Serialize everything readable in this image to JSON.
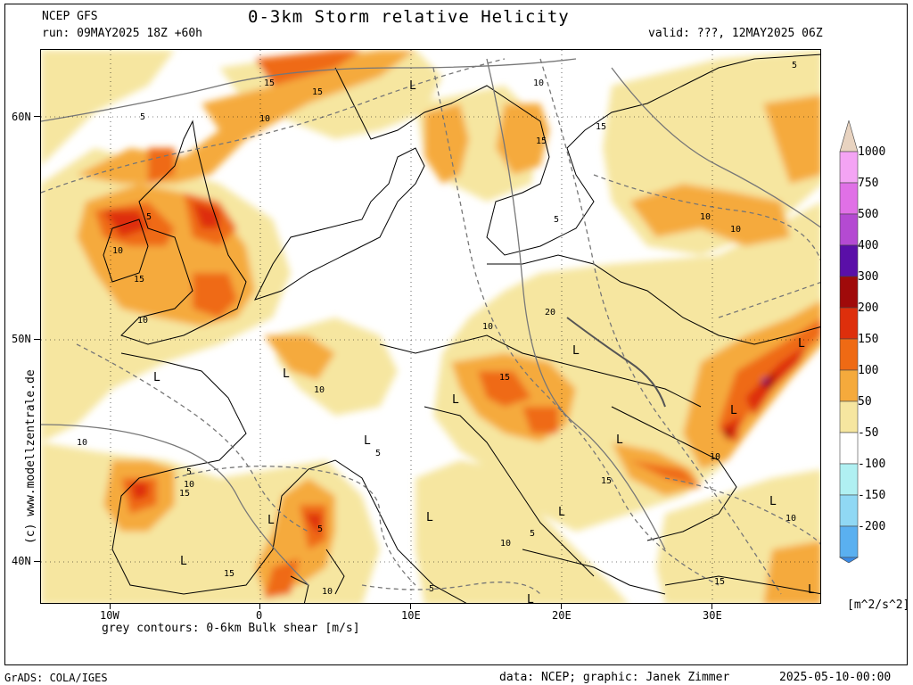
{
  "header": {
    "model": "NCEP GFS",
    "run": "run: 09MAY2025 18Z +60h",
    "title": "0-3km Storm relative Helicity",
    "valid": "valid: ???, 12MAY2025 06Z"
  },
  "axes": {
    "lat_labels": [
      "60N",
      "50N",
      "40N"
    ],
    "lon_labels": [
      "10W",
      "0",
      "10E",
      "20E",
      "30E"
    ]
  },
  "contour_note": "grey contours: 0-6km Bulk shear [m/s]",
  "side_credit": "(c) www.modellzentrale.de",
  "colorbar": {
    "levels": [
      "1000",
      "750",
      "500",
      "400",
      "300",
      "200",
      "150",
      "100",
      "50",
      "-50",
      "-100",
      "-150",
      "-200"
    ],
    "colors": [
      "#e8d3c0",
      "#f4a4f4",
      "#e070e6",
      "#b44ad2",
      "#5a0fa8",
      "#a00a0a",
      "#de2f0c",
      "#ef6a14",
      "#f5aa3c",
      "#f6e6a0",
      "#ffffff",
      "#b0f0f2",
      "#90d8f4",
      "#5ab0f0",
      "#3a8be6"
    ],
    "unit": "[m^2/s^2]"
  },
  "map_labels": {
    "lows": [
      "L",
      "L",
      "L",
      "L",
      "L",
      "L",
      "L",
      "L",
      "L",
      "L",
      "L",
      "L",
      "L",
      "L",
      "L",
      "L"
    ],
    "shear": [
      "5",
      "10",
      "15",
      "10",
      "5",
      "15",
      "10",
      "10",
      "15",
      "10",
      "5",
      "10",
      "15",
      "20",
      "10",
      "15",
      "10",
      "5",
      "10",
      "15",
      "5",
      "15",
      "10",
      "10",
      "5",
      "10",
      "5",
      "15",
      "10",
      "5",
      "10",
      "15",
      "10",
      "15",
      "5"
    ]
  },
  "footer": {
    "left": "GrADS: COLA/IGES",
    "data": "data: NCEP; graphic: Janek Zimmer",
    "date": "2025-05-10-00:00"
  }
}
